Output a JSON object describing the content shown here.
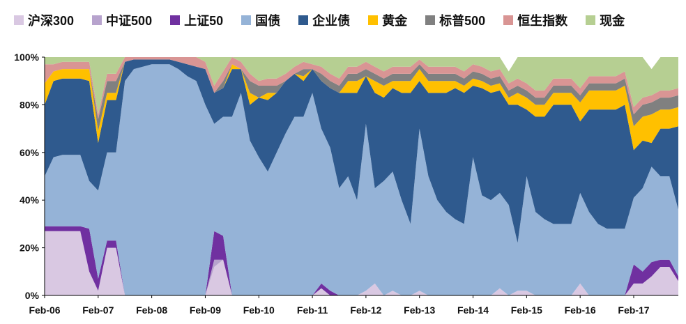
{
  "chart_data": {
    "type": "area",
    "title": "",
    "xlabel": "",
    "ylabel": "",
    "ylim": [
      0,
      100
    ],
    "grid": false,
    "legend_position": "top",
    "x_ticks": [
      "Feb-06",
      "Feb-07",
      "Feb-08",
      "Feb-09",
      "Feb-10",
      "Feb-11",
      "Feb-12",
      "Feb-13",
      "Feb-14",
      "Feb-15",
      "Feb-16",
      "Feb-17"
    ],
    "y_ticks": [
      "0%",
      "20%",
      "40%",
      "60%",
      "80%",
      "100%"
    ],
    "x": [
      "2006-02",
      "2006-04",
      "2006-06",
      "2006-08",
      "2006-10",
      "2006-12",
      "2007-02",
      "2007-04",
      "2007-06",
      "2007-08",
      "2007-10",
      "2007-12",
      "2008-02",
      "2008-04",
      "2008-06",
      "2008-08",
      "2008-10",
      "2008-12",
      "2009-02",
      "2009-04",
      "2009-06",
      "2009-08",
      "2009-10",
      "2009-12",
      "2010-02",
      "2010-04",
      "2010-06",
      "2010-08",
      "2010-10",
      "2010-12",
      "2011-02",
      "2011-04",
      "2011-06",
      "2011-08",
      "2011-10",
      "2011-12",
      "2012-02",
      "2012-04",
      "2012-06",
      "2012-08",
      "2012-10",
      "2012-12",
      "2013-02",
      "2013-04",
      "2013-06",
      "2013-08",
      "2013-10",
      "2013-12",
      "2014-02",
      "2014-04",
      "2014-06",
      "2014-08",
      "2014-10",
      "2014-12",
      "2015-02",
      "2015-04",
      "2015-06",
      "2015-08",
      "2015-10",
      "2015-12",
      "2016-02",
      "2016-04",
      "2016-06",
      "2016-08",
      "2016-10",
      "2016-12",
      "2017-02",
      "2017-04",
      "2017-06",
      "2017-08",
      "2017-10",
      "2017-12"
    ],
    "series": [
      {
        "name": "沪深300",
        "color": "#D9C8E2",
        "values": [
          27,
          27,
          27,
          27,
          27,
          10,
          2,
          20,
          20,
          0,
          0,
          0,
          0,
          0,
          0,
          0,
          0,
          0,
          0,
          12,
          15,
          0,
          0,
          0,
          0,
          0,
          0,
          0,
          0,
          0,
          0,
          3,
          0,
          0,
          0,
          0,
          2,
          5,
          0,
          2,
          0,
          0,
          2,
          0,
          0,
          0,
          0,
          0,
          0,
          0,
          0,
          3,
          0,
          2,
          2,
          0,
          0,
          0,
          0,
          0,
          5,
          0,
          0,
          0,
          0,
          0,
          5,
          5,
          8,
          12,
          12,
          6
        ]
      },
      {
        "name": "中证500",
        "color": "#B7A3CD",
        "values": [
          0,
          0,
          0,
          0,
          0,
          0,
          0,
          0,
          0,
          0,
          0,
          0,
          0,
          0,
          0,
          0,
          0,
          0,
          0,
          3,
          0,
          0,
          0,
          0,
          0,
          0,
          0,
          0,
          0,
          0,
          0,
          0,
          0,
          0,
          0,
          0,
          0,
          0,
          0,
          0,
          0,
          0,
          0,
          0,
          0,
          0,
          0,
          0,
          0,
          0,
          0,
          0,
          0,
          0,
          0,
          0,
          0,
          0,
          0,
          0,
          0,
          0,
          0,
          0,
          0,
          0,
          0,
          0,
          0,
          0,
          0,
          0
        ]
      },
      {
        "name": "上证50",
        "color": "#7030A0",
        "values": [
          2,
          2,
          2,
          2,
          2,
          18,
          5,
          3,
          3,
          0,
          0,
          0,
          0,
          0,
          0,
          0,
          0,
          0,
          0,
          12,
          10,
          0,
          0,
          0,
          0,
          0,
          0,
          0,
          0,
          0,
          0,
          2,
          2,
          0,
          0,
          0,
          0,
          0,
          0,
          0,
          0,
          0,
          0,
          0,
          0,
          0,
          0,
          0,
          0,
          0,
          0,
          0,
          0,
          0,
          0,
          0,
          0,
          0,
          0,
          0,
          0,
          0,
          0,
          0,
          0,
          0,
          8,
          5,
          6,
          3,
          3,
          2
        ]
      },
      {
        "name": "国债",
        "color": "#95B3D7",
        "values": [
          21,
          29,
          30,
          30,
          30,
          20,
          37,
          37,
          37,
          90,
          95,
          96,
          97,
          97,
          97,
          95,
          92,
          90,
          80,
          45,
          50,
          75,
          85,
          65,
          58,
          52,
          60,
          68,
          75,
          75,
          85,
          65,
          60,
          45,
          50,
          40,
          70,
          40,
          48,
          50,
          40,
          30,
          68,
          50,
          40,
          35,
          32,
          30,
          58,
          42,
          40,
          40,
          38,
          20,
          48,
          35,
          32,
          30,
          30,
          30,
          38,
          35,
          30,
          28,
          28,
          28,
          28,
          35,
          40,
          35,
          35,
          28
        ]
      },
      {
        "name": "企业债",
        "color": "#2F5A8E",
        "values": [
          30,
          32,
          32,
          32,
          32,
          42,
          20,
          22,
          22,
          8,
          4,
          3,
          2,
          2,
          2,
          3,
          5,
          6,
          15,
          13,
          12,
          20,
          10,
          15,
          25,
          30,
          25,
          22,
          18,
          15,
          10,
          20,
          25,
          40,
          35,
          45,
          20,
          40,
          35,
          35,
          45,
          55,
          20,
          35,
          45,
          50,
          55,
          55,
          30,
          45,
          45,
          43,
          42,
          58,
          28,
          40,
          43,
          50,
          50,
          50,
          30,
          43,
          48,
          50,
          50,
          52,
          20,
          20,
          10,
          20,
          20,
          35
        ]
      },
      {
        "name": "黄金",
        "color": "#FFC000",
        "values": [
          9,
          4,
          4,
          4,
          4,
          5,
          5,
          3,
          3,
          0,
          0,
          0,
          0,
          0,
          0,
          0,
          0,
          0,
          0,
          0,
          0,
          2,
          0,
          5,
          0,
          3,
          0,
          0,
          0,
          2,
          0,
          0,
          0,
          0,
          5,
          5,
          0,
          5,
          5,
          3,
          5,
          5,
          5,
          5,
          5,
          5,
          3,
          3,
          3,
          3,
          3,
          3,
          3,
          5,
          5,
          5,
          5,
          5,
          5,
          5,
          8,
          8,
          8,
          8,
          8,
          8,
          10,
          10,
          12,
          8,
          8,
          8
        ]
      },
      {
        "name": "标普500",
        "color": "#808080",
        "values": [
          0,
          0,
          0,
          0,
          0,
          0,
          5,
          5,
          5,
          0,
          0,
          0,
          0,
          0,
          0,
          0,
          0,
          0,
          0,
          0,
          3,
          0,
          0,
          5,
          5,
          3,
          3,
          0,
          0,
          3,
          0,
          3,
          3,
          3,
          3,
          3,
          3,
          3,
          3,
          3,
          3,
          3,
          2,
          3,
          3,
          3,
          3,
          3,
          3,
          3,
          3,
          3,
          3,
          3,
          3,
          3,
          3,
          3,
          3,
          3,
          3,
          3,
          3,
          3,
          3,
          3,
          5,
          5,
          5,
          5,
          5,
          5
        ]
      },
      {
        "name": "恒生指数",
        "color": "#D99594",
        "values": [
          8,
          3,
          3,
          3,
          3,
          3,
          2,
          3,
          3,
          2,
          1,
          1,
          1,
          1,
          1,
          2,
          3,
          4,
          3,
          3,
          4,
          3,
          3,
          3,
          2,
          3,
          3,
          3,
          3,
          3,
          2,
          3,
          3,
          3,
          3,
          3,
          3,
          3,
          3,
          3,
          3,
          3,
          2,
          3,
          3,
          3,
          3,
          3,
          3,
          3,
          3,
          3,
          3,
          3,
          3,
          3,
          3,
          3,
          3,
          3,
          3,
          3,
          3,
          3,
          3,
          3,
          3,
          3,
          3,
          3,
          3,
          3
        ]
      },
      {
        "name": "现金",
        "color": "#B6CF92",
        "values": [
          3,
          3,
          2,
          2,
          2,
          2,
          24,
          7,
          7,
          0,
          0,
          0,
          0,
          0,
          0,
          0,
          0,
          0,
          2,
          12,
          6,
          0,
          2,
          7,
          10,
          9,
          9,
          7,
          4,
          2,
          3,
          4,
          7,
          9,
          4,
          4,
          2,
          4,
          6,
          4,
          4,
          4,
          1,
          4,
          4,
          4,
          4,
          6,
          3,
          4,
          6,
          5,
          5,
          9,
          11,
          14,
          14,
          9,
          9,
          9,
          13,
          8,
          8,
          8,
          8,
          6,
          21,
          17,
          11,
          14,
          14,
          13
        ]
      }
    ]
  }
}
